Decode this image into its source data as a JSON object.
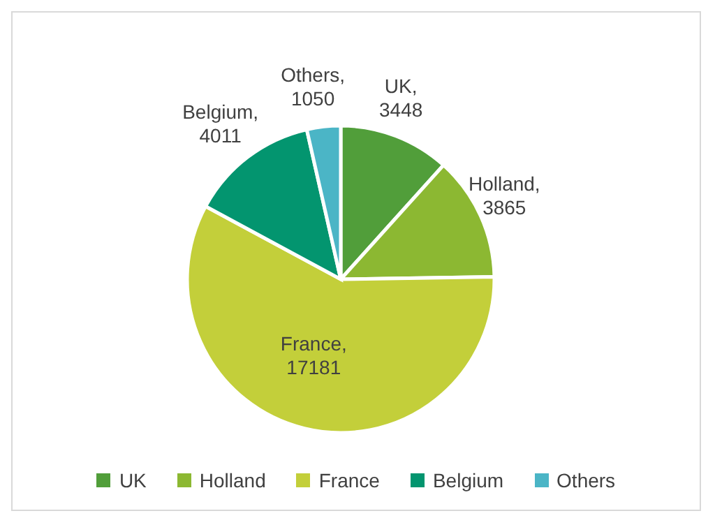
{
  "chart_data": {
    "type": "pie",
    "categories": [
      "UK",
      "Holland",
      "France",
      "Belgium",
      "Others"
    ],
    "values": [
      3448,
      3865,
      17181,
      4011,
      1050
    ],
    "colors": [
      "#519e3a",
      "#8cb832",
      "#c3cf3a",
      "#03956f",
      "#4bb5c6"
    ],
    "value_labels": [
      "UK, 3448",
      "Holland, 3865",
      "France, 17181",
      "Belgium, 4011",
      "Others, 1050"
    ],
    "legend": "bottom"
  }
}
